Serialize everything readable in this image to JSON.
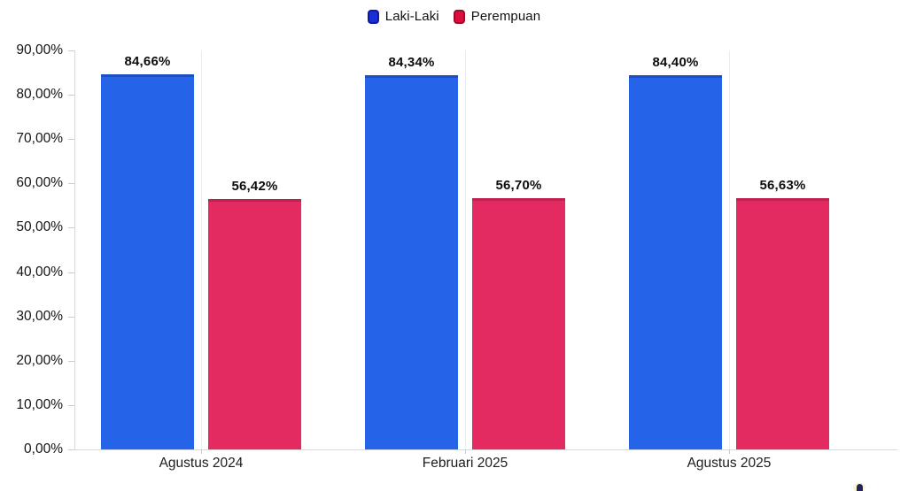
{
  "legend": {
    "items": [
      {
        "label": "Laki-Laki",
        "swatch_color": "#1b2ed6",
        "swatch_border": "#0a1aa8"
      },
      {
        "label": "Perempuan",
        "swatch_color": "#d90f3d",
        "swatch_border": "#9e0a2a"
      }
    ]
  },
  "chart_data": {
    "type": "bar",
    "categories": [
      "Agustus 2024",
      "Februari 2025",
      "Agustus 2025"
    ],
    "series": [
      {
        "name": "Laki-Laki",
        "color": "#2563e8",
        "edge_color": "#1e4fc2",
        "values": [
          84.66,
          84.34,
          84.4
        ],
        "labels": [
          "84,66%",
          "84,34%",
          "84,40%"
        ]
      },
      {
        "name": "Perempuan",
        "color": "#e32b61",
        "edge_color": "#c12050",
        "values": [
          56.42,
          56.7,
          56.63
        ],
        "labels": [
          "56,42%",
          "56,70%",
          "56,63%"
        ]
      }
    ],
    "title": "",
    "xlabel": "",
    "ylabel": "",
    "ylim": [
      0,
      90
    ],
    "ytick_step": 10,
    "ytick_labels": [
      "0,00%",
      "10,00%",
      "20,00%",
      "30,00%",
      "40,00%",
      "50,00%",
      "60,00%",
      "70,00%",
      "80,00%",
      "90,00%"
    ],
    "number_format": "comma-decimal-percent",
    "grid": "vertical-category-center-lines",
    "legend_position": "top-center",
    "value_labels": "above-bars-bold"
  }
}
